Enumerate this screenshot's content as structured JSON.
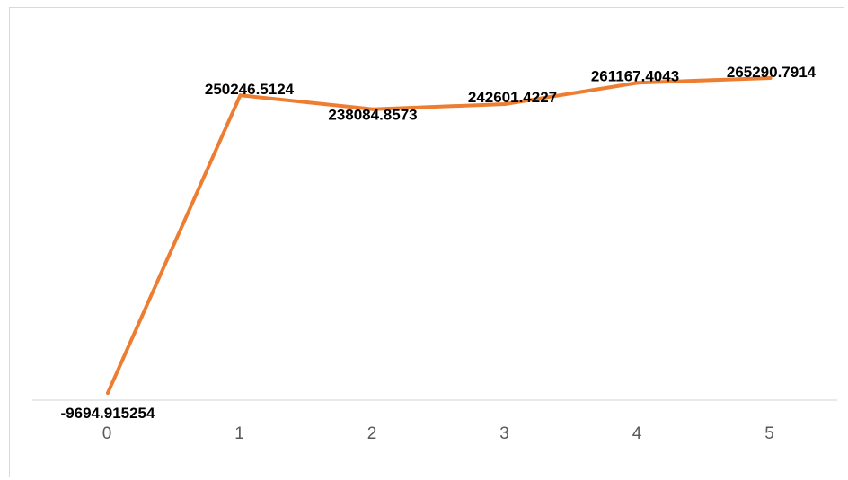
{
  "chart_data": {
    "type": "line",
    "x": [
      "0",
      "1",
      "2",
      "3",
      "4",
      "5"
    ],
    "series": [
      {
        "values": [
          -9694.915254,
          250246.5124,
          238084.8573,
          242601.4227,
          261167.4043,
          265290.7914
        ],
        "labels": [
          "-9694.915254",
          "250246.5124",
          "238084.8573",
          "242601.4227",
          "261167.4043",
          "265290.7914"
        ],
        "color": "#ED7D31"
      }
    ],
    "title": "",
    "xlabel": "",
    "ylabel": "",
    "ylim": [
      -9694.915254,
      265290.7914
    ],
    "grid": false,
    "legend": "none",
    "colors": {
      "axis": "#d9d9d9",
      "tick_text": "#595959",
      "label_text": "#000000"
    }
  }
}
